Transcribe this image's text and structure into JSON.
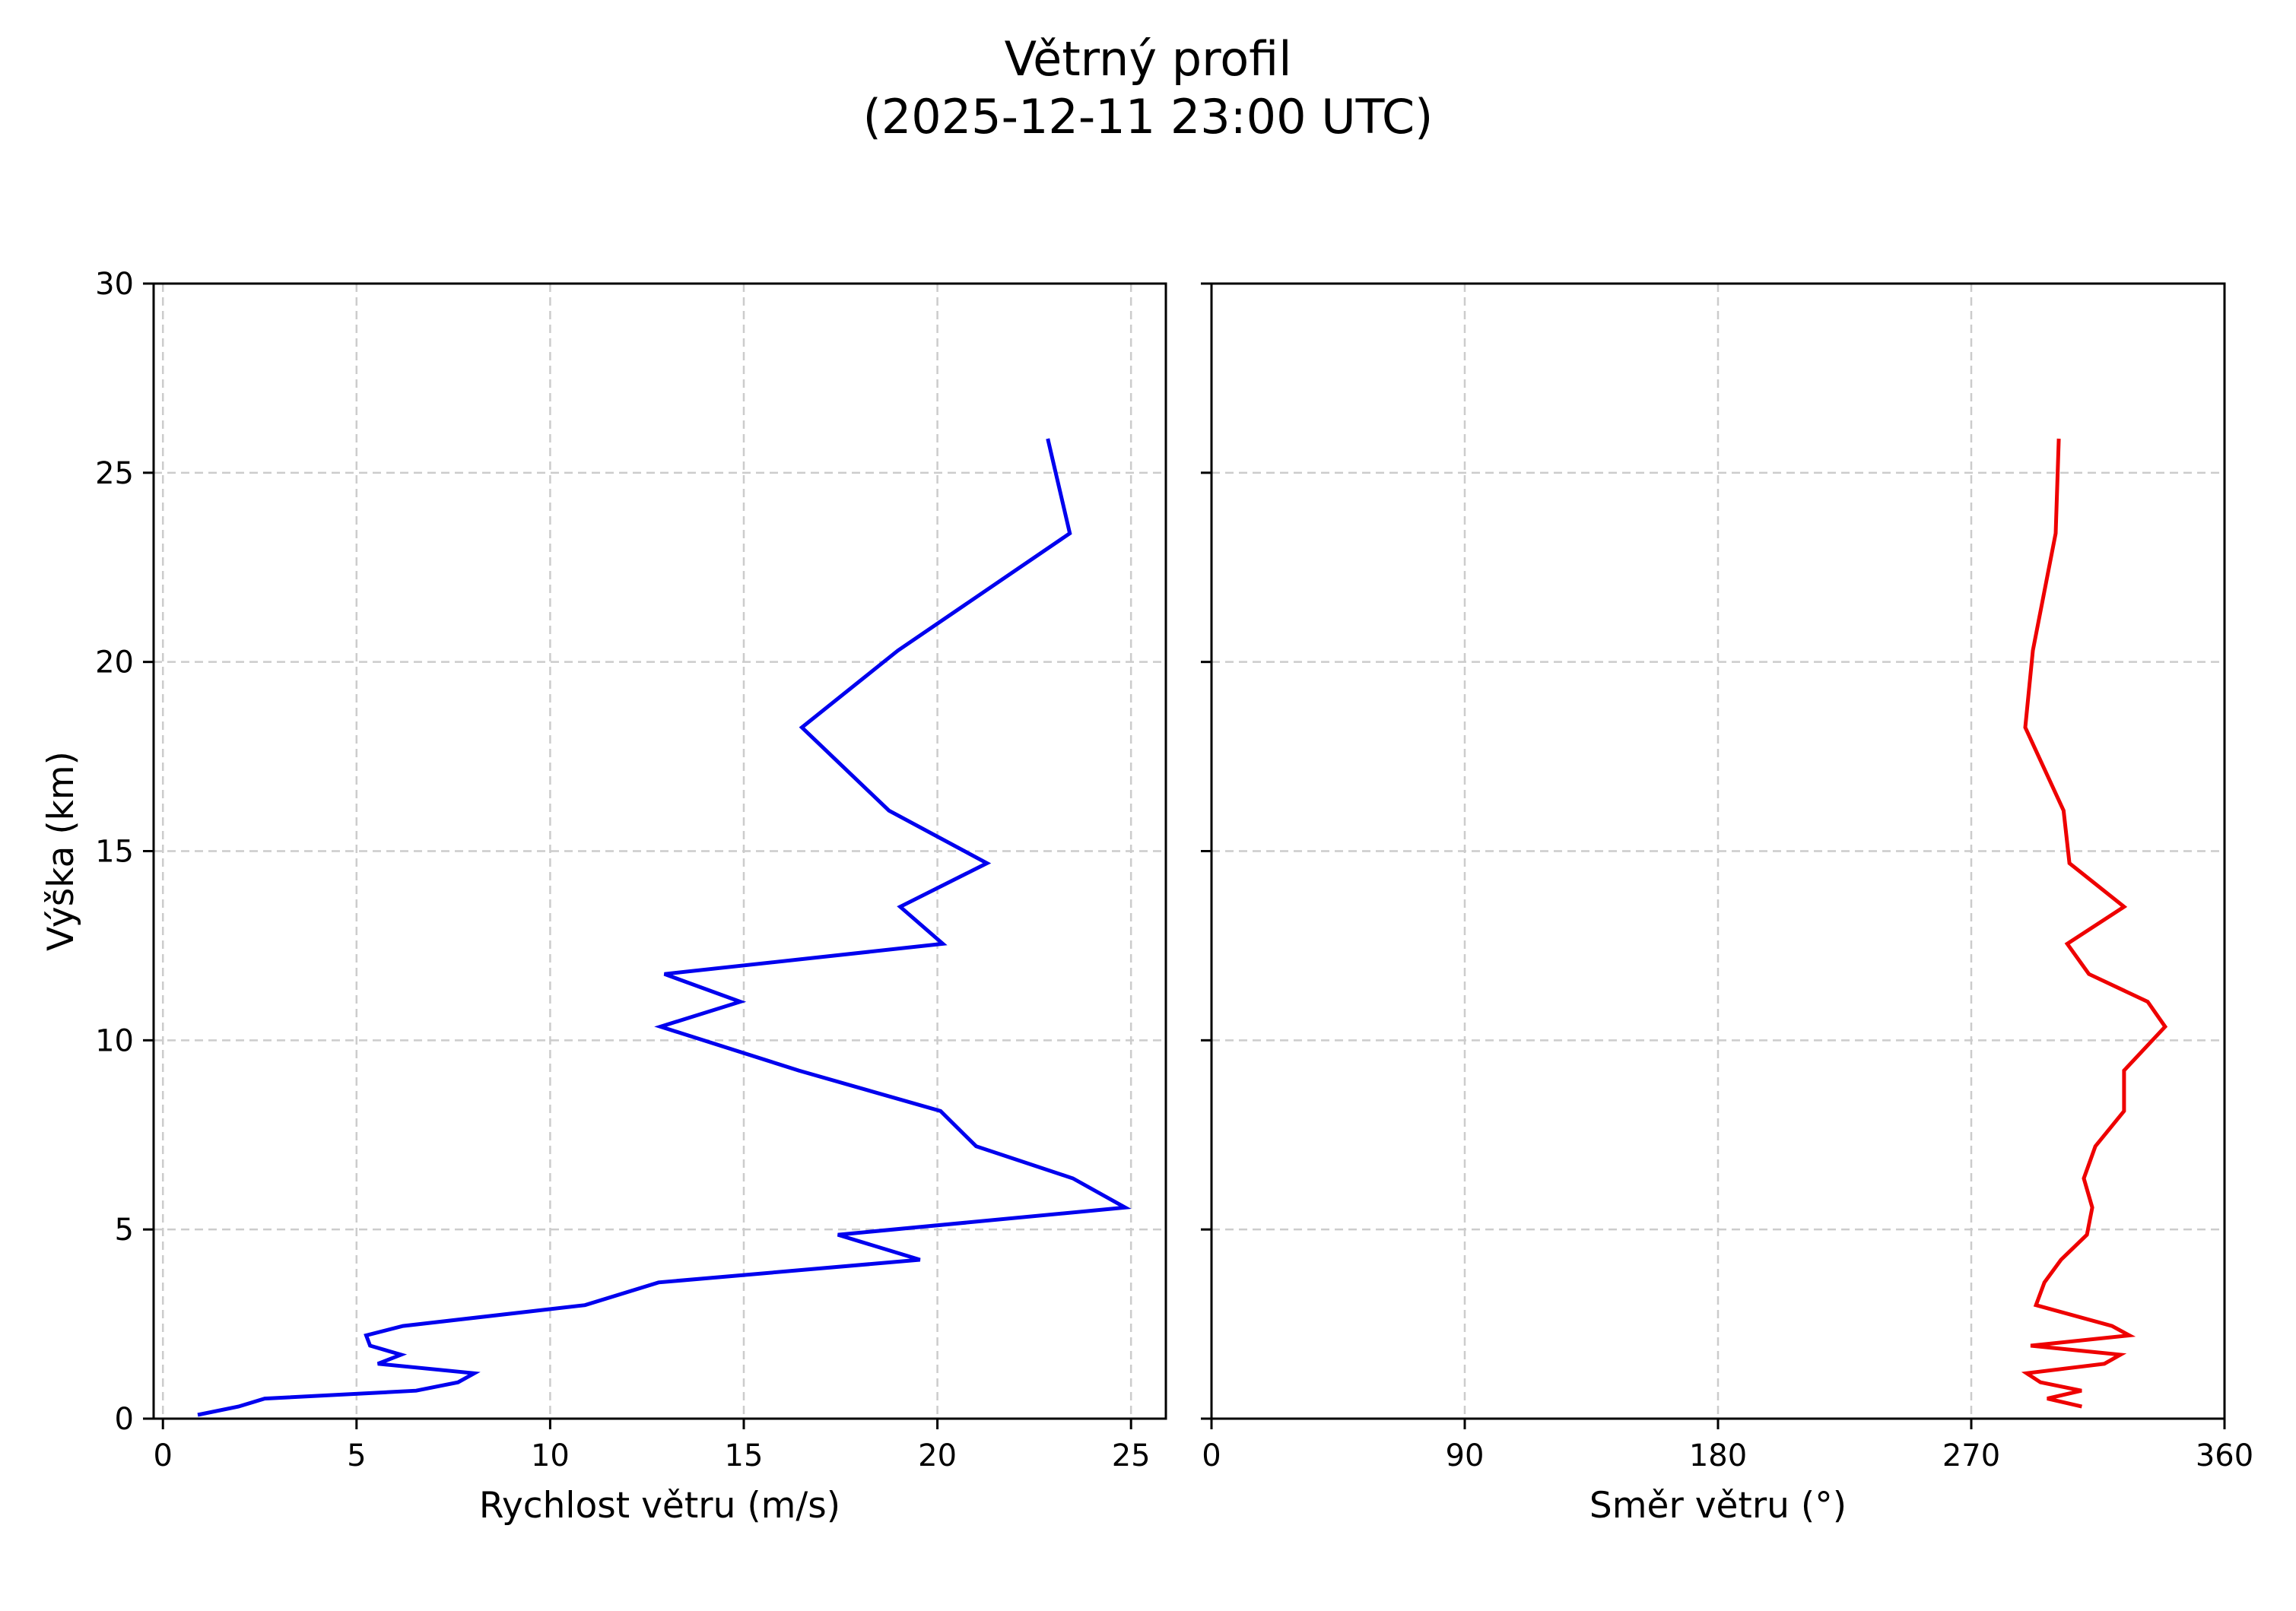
{
  "title": {
    "line1": "Větrný profil",
    "line2": "(2025-12-11 23:00 UTC)"
  },
  "colors": {
    "speed_line": "#0000ee",
    "direction_line": "#ee0000",
    "grid": "#cccccc",
    "axes": "#000000"
  },
  "chart_data": [
    {
      "type": "line",
      "title": "Větrný profil (2025-12-11 23:00 UTC)",
      "xlabel": "Rychlost větru (m/s)",
      "ylabel": "Výška (km)",
      "xlim": [
        -0.24,
        25.9
      ],
      "ylim": [
        0,
        30
      ],
      "xticks": [
        0,
        5,
        10,
        15,
        20,
        25
      ],
      "yticks": [
        0,
        5,
        10,
        15,
        20,
        25,
        30
      ],
      "grid": true,
      "series": [
        {
          "name": "Rychlost větru",
          "color": "#0000ee",
          "x": [
            0.9,
            1.95,
            2.63,
            6.54,
            7.62,
            8.04,
            5.55,
            6.15,
            5.35,
            5.25,
            6.2,
            10.9,
            12.8,
            19.55,
            17.43,
            24.85,
            23.5,
            21.0,
            20.08,
            16.42,
            12.85,
            14.91,
            12.95,
            20.14,
            19.04,
            21.28,
            18.75,
            16.5,
            18.98,
            23.42,
            22.85
          ],
          "y": [
            0.1,
            0.32,
            0.53,
            0.74,
            0.96,
            1.2,
            1.45,
            1.69,
            1.93,
            2.2,
            2.45,
            3.0,
            3.6,
            4.2,
            4.86,
            5.58,
            6.35,
            7.2,
            8.13,
            9.2,
            10.36,
            11.02,
            11.75,
            12.55,
            13.53,
            14.68,
            16.07,
            18.27,
            20.3,
            23.4,
            25.9
          ]
        }
      ]
    },
    {
      "type": "line",
      "xlabel": "Směr větru (°)",
      "ylabel": "",
      "xlim": [
        0,
        360
      ],
      "ylim": [
        0,
        30
      ],
      "xticks": [
        0,
        90,
        180,
        270,
        360
      ],
      "yticks": [
        0,
        5,
        10,
        15,
        20,
        25,
        30
      ],
      "ytick_labels_visible": false,
      "grid": true,
      "series": [
        {
          "name": "Směr větru",
          "color": "#ee0000",
          "x": [
            309.3,
            297.0,
            309.2,
            294.6,
            289.7,
            317.3,
            323.0,
            291.1,
            326.2,
            320.0,
            293.0,
            296.0,
            301.9,
            311.1,
            313.0,
            310.0,
            314.1,
            324.3,
            324.3,
            338.9,
            332.7,
            311.8,
            304.1,
            324.3,
            304.9,
            302.8,
            289.2,
            291.9,
            300.0,
            301.1
          ],
          "y": [
            0.32,
            0.53,
            0.74,
            0.96,
            1.2,
            1.45,
            1.69,
            1.93,
            2.2,
            2.45,
            3.0,
            3.6,
            4.2,
            4.86,
            5.58,
            6.35,
            7.2,
            8.13,
            9.2,
            10.36,
            11.02,
            11.75,
            12.55,
            13.53,
            14.68,
            16.07,
            18.27,
            20.3,
            23.4,
            25.9
          ]
        }
      ]
    }
  ]
}
